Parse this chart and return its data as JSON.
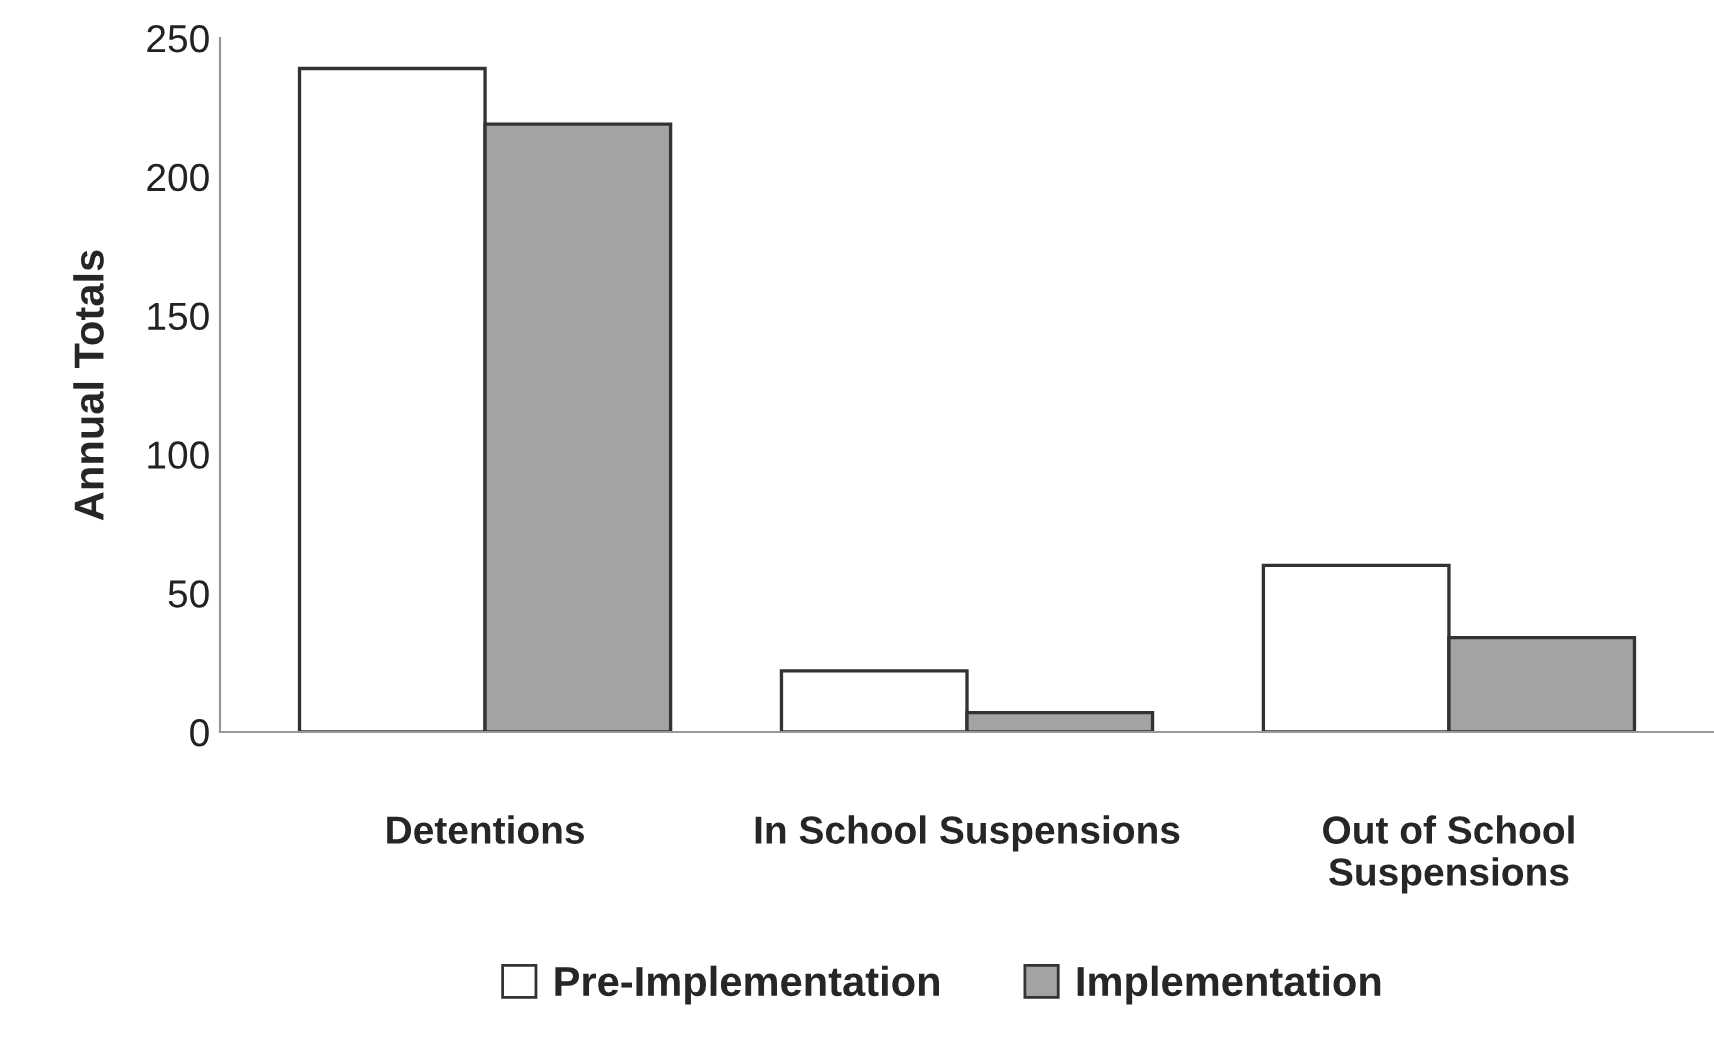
{
  "chart_data": {
    "type": "bar",
    "ylabel": "Annual Totals",
    "categories": [
      "Detentions",
      "In School Suspensions",
      "Out of School\nSuspensions"
    ],
    "series": [
      {
        "name": "Pre-Implementation",
        "color": "#ffffff",
        "values": [
          239,
          22,
          60
        ]
      },
      {
        "name": "Implementation",
        "color": "#a3a3a3",
        "values": [
          219,
          7,
          34
        ]
      }
    ],
    "ylim": [
      0,
      250
    ],
    "yticks": [
      0,
      50,
      100,
      150,
      200,
      250
    ],
    "grid": false,
    "legend": "bottom"
  }
}
